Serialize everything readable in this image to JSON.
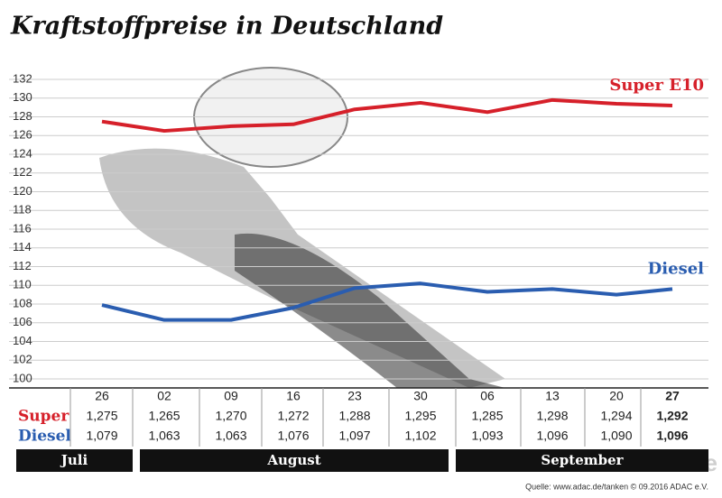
{
  "chart_data": {
    "type": "line",
    "title": "Kraftstoffpreise in Deutschland",
    "categories": [
      "26",
      "02",
      "09",
      "16",
      "23",
      "30",
      "06",
      "13",
      "20",
      "27"
    ],
    "months": [
      "Juli",
      "August",
      "September"
    ],
    "row_labels": [
      "Super",
      "Diesel"
    ],
    "series": [
      {
        "name": "Super E10",
        "color": "#d6202a",
        "values": [
          127.5,
          126.5,
          127.0,
          127.2,
          128.8,
          129.5,
          128.5,
          129.8,
          129.4,
          129.2
        ],
        "value_labels": [
          "1,275",
          "1,265",
          "1,270",
          "1,272",
          "1,288",
          "1,295",
          "1,285",
          "1,298",
          "1,294",
          "1,292"
        ]
      },
      {
        "name": "Diesel",
        "color": "#2a5db0",
        "values": [
          107.9,
          106.3,
          106.3,
          107.6,
          109.7,
          110.2,
          109.3,
          109.6,
          109.0,
          109.6
        ],
        "value_labels": [
          "1,079",
          "1,063",
          "1,063",
          "1,076",
          "1,097",
          "1,102",
          "1,093",
          "1,096",
          "1,090",
          "1,096"
        ]
      }
    ],
    "ylim": [
      100,
      132
    ],
    "yticks": [
      100,
      102,
      104,
      106,
      108,
      110,
      112,
      114,
      116,
      118,
      120,
      122,
      124,
      126,
      128,
      130,
      132
    ],
    "grid": true,
    "source": "Quelle: www.adac.de/tanken  © 09.2016  ADAC e.V.",
    "watermark": "ADAC Presse"
  }
}
